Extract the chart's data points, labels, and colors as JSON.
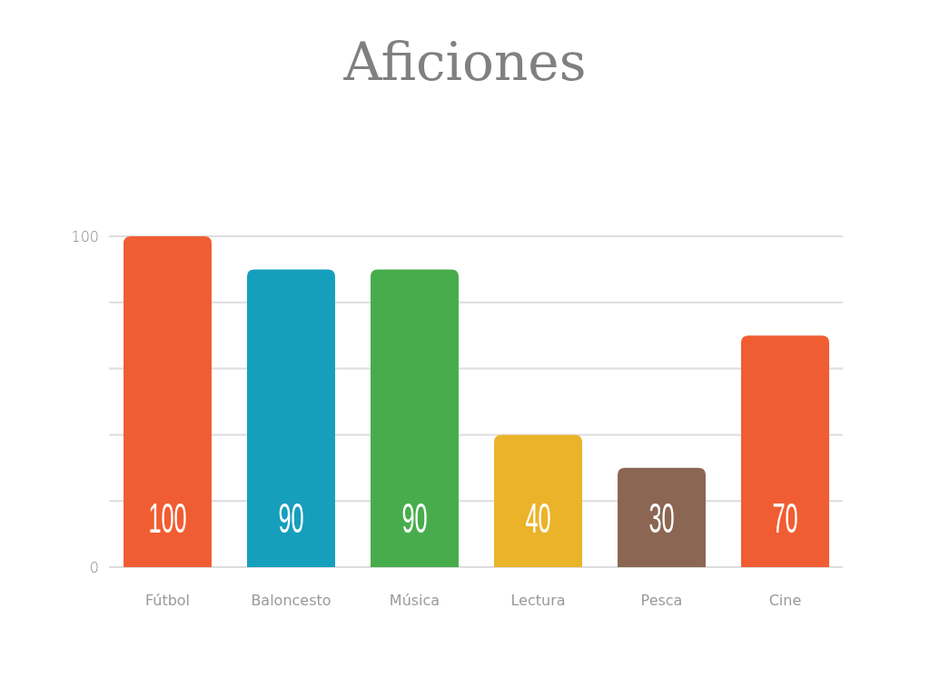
{
  "chart_data": {
    "type": "bar",
    "title": "Aficiones",
    "categories": [
      "Fútbol",
      "Baloncesto",
      "Música",
      "Lectura",
      "Pesca",
      "Cine"
    ],
    "values": [
      100,
      90,
      90,
      40,
      30,
      70
    ],
    "colors": [
      "#f05d33",
      "#169fbc",
      "#47ad4c",
      "#ebb32a",
      "#8b6653",
      "#f05d33"
    ],
    "ylim": [
      0,
      100
    ],
    "yticks": [
      0,
      {
        "value": 20,
        "label": null
      },
      {
        "value": 40,
        "label": null
      },
      {
        "value": 60,
        "label": null
      },
      {
        "value": 80,
        "label": null
      },
      100
    ],
    "grid": "y",
    "data_labels": true
  }
}
